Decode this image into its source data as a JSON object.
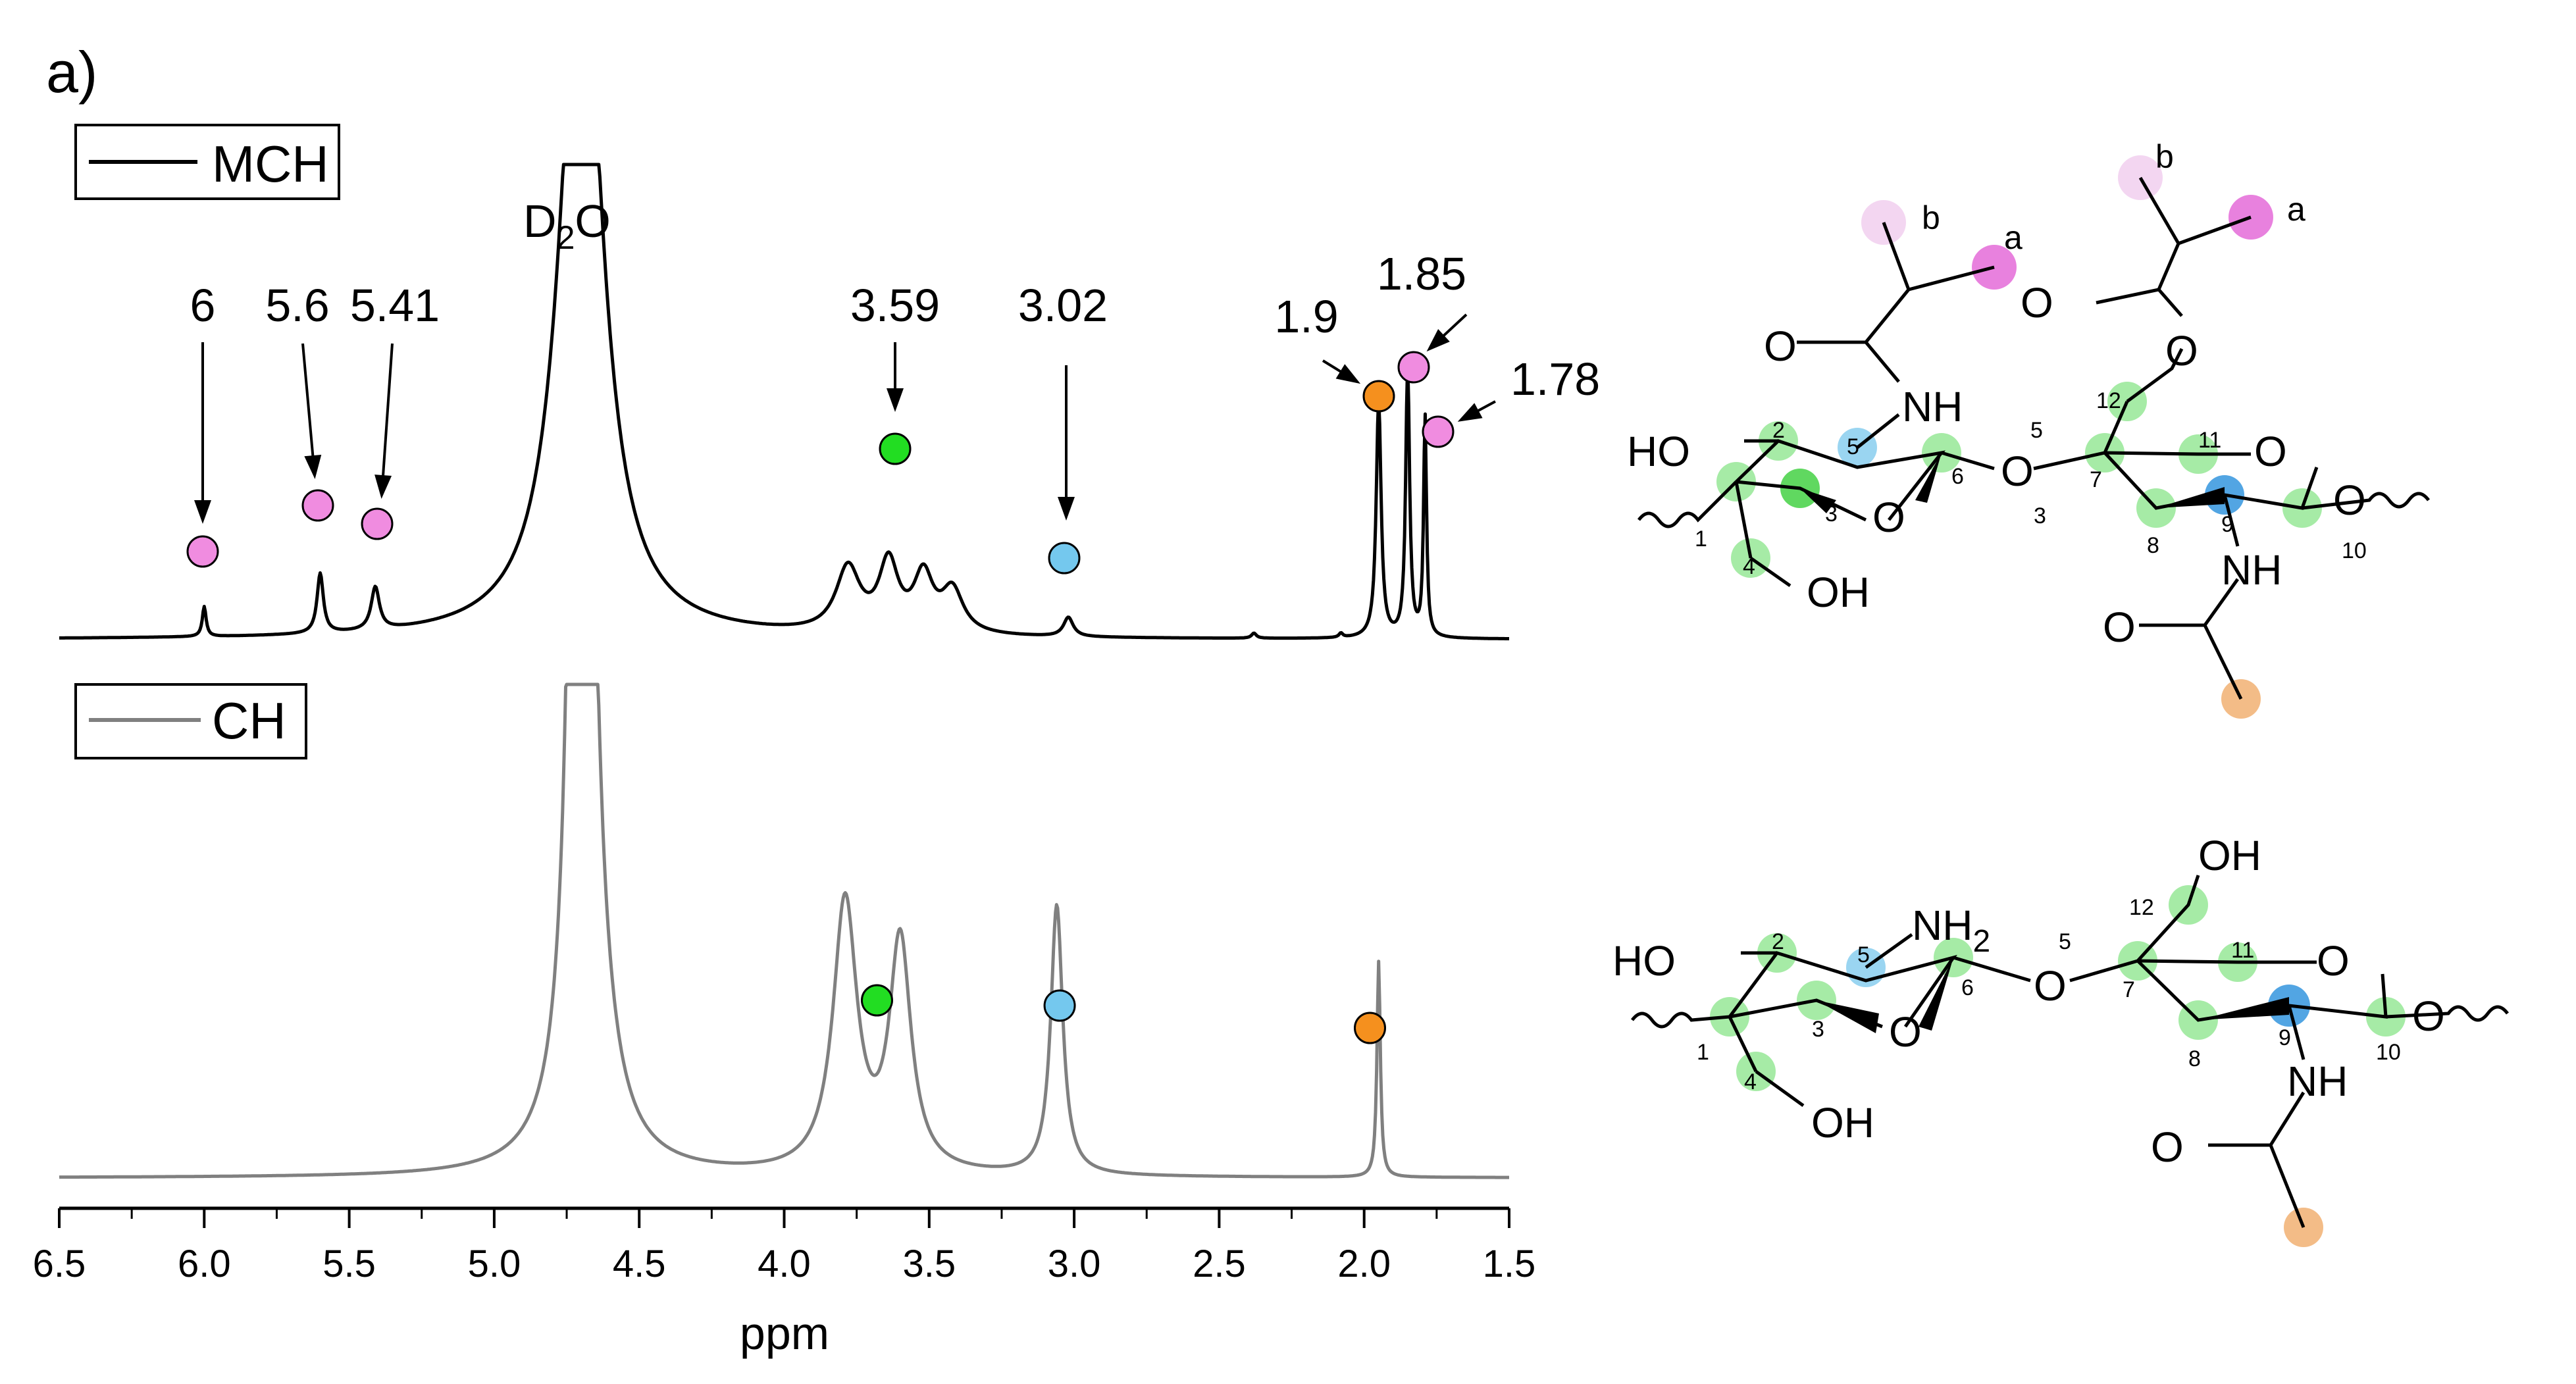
{
  "panel_label": "a)",
  "chart_data": {
    "type": "line",
    "xlabel": "ppm",
    "xlim": [
      6.5,
      1.5
    ],
    "x_ticks": [
      "6.5",
      "6.0",
      "5.5",
      "5.0",
      "4.5",
      "4.0",
      "3.5",
      "3.0",
      "2.5",
      "2.0",
      "1.5"
    ],
    "grid": false,
    "colors": {
      "pink": "#f08ce0",
      "green": "#22dd22",
      "blue": "#74c8ee",
      "orange": "#f5901e",
      "mch_line": "#000000",
      "ch_line": "#808080"
    },
    "series": [
      {
        "name": "MCH",
        "color": "#000000",
        "peaks": [
          {
            "x": 6.0,
            "h": 0.07,
            "w": 0.008
          },
          {
            "x": 5.6,
            "h": 0.14,
            "w": 0.013
          },
          {
            "x": 5.41,
            "h": 0.1,
            "w": 0.017
          },
          {
            "x": 4.7,
            "h": 1.7,
            "w": 0.085
          },
          {
            "x": 3.78,
            "h": 0.15,
            "w": 0.05
          },
          {
            "x": 3.64,
            "h": 0.16,
            "w": 0.04
          },
          {
            "x": 3.52,
            "h": 0.13,
            "w": 0.04
          },
          {
            "x": 3.42,
            "h": 0.1,
            "w": 0.045
          },
          {
            "x": 3.02,
            "h": 0.045,
            "w": 0.02
          },
          {
            "x": 2.38,
            "h": 0.012,
            "w": 0.01
          },
          {
            "x": 2.08,
            "h": 0.01,
            "w": 0.008
          },
          {
            "x": 1.95,
            "h": 0.56,
            "w": 0.01
          },
          {
            "x": 1.85,
            "h": 0.64,
            "w": 0.008
          },
          {
            "x": 1.79,
            "h": 0.52,
            "w": 0.006
          }
        ],
        "annotations": [
          {
            "label": "6",
            "x": 6.0,
            "color": "pink"
          },
          {
            "label": "5.6",
            "x": 5.6,
            "color": "pink"
          },
          {
            "label": "5.41",
            "x": 5.41,
            "color": "pink"
          },
          {
            "label": "3.59",
            "x": 3.59,
            "color": "green"
          },
          {
            "label": "3.02",
            "x": 3.02,
            "color": "blue"
          },
          {
            "label": "1.9",
            "x": 1.95,
            "color": "orange"
          },
          {
            "label": "1.85",
            "x": 1.85,
            "color": "pink"
          },
          {
            "label": "1.78",
            "x": 1.78,
            "color": "pink"
          }
        ],
        "solvent_label": "D2O"
      },
      {
        "name": "CH",
        "color": "#808080",
        "peaks": [
          {
            "x": 4.7,
            "h": 2.5,
            "w": 0.02
          },
          {
            "x": 4.67,
            "h": 0.12,
            "w": 0.08
          },
          {
            "x": 3.79,
            "h": 0.2,
            "w": 0.05
          },
          {
            "x": 3.6,
            "h": 0.17,
            "w": 0.045
          },
          {
            "x": 3.06,
            "h": 0.2,
            "w": 0.025
          },
          {
            "x": 1.95,
            "h": 0.16,
            "w": 0.007
          }
        ],
        "markers": [
          {
            "x": 3.68,
            "color": "green"
          },
          {
            "x": 3.05,
            "color": "blue"
          },
          {
            "x": 1.98,
            "color": "orange"
          }
        ]
      }
    ]
  },
  "structure_top": {
    "labels": {
      "ho": "HO",
      "oh": "OH",
      "nh_top": "NH",
      "nh_bottom": "NH",
      "o_link": "O",
      "o_ring1": "O",
      "o_ring2": "O",
      "o_end": "O",
      "o_carbonyl1": "O",
      "o_carbonyl2": "O",
      "o_ester": "O",
      "o_acetyl": "O",
      "a1": "a",
      "b1": "b",
      "a2": "a",
      "b2": "b"
    },
    "numbers": [
      "1",
      "2",
      "3",
      "4",
      "5",
      "6",
      "5",
      "3",
      "7",
      "8",
      "9",
      "10",
      "11",
      "12"
    ]
  },
  "structure_bottom": {
    "labels": {
      "ho": "HO",
      "oh": "OH",
      "oh_top": "OH",
      "nh2": "NH",
      "nh2_sub": "2",
      "nh": "NH",
      "o_link": "O",
      "o_ring1": "O",
      "o_ring2": "O",
      "o_end": "O",
      "o_acetyl": "O"
    },
    "numbers": [
      "1",
      "2",
      "3",
      "4",
      "5",
      "6",
      "5",
      "7",
      "8",
      "9",
      "10",
      "11",
      "12"
    ]
  }
}
